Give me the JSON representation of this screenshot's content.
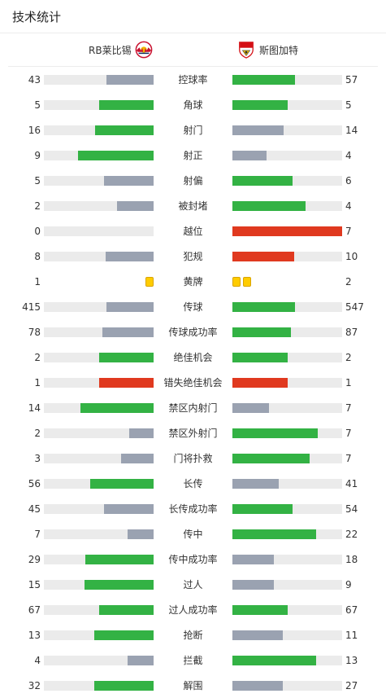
{
  "header": {
    "title": "技术统计"
  },
  "teams": {
    "home": {
      "name": "RB莱比锡",
      "logo_icon": "rb-leipzig-crest-icon"
    },
    "away": {
      "name": "斯图加特",
      "logo_icon": "vfb-stuttgart-crest-icon"
    }
  },
  "colors": {
    "winner": "#33b244",
    "loser": "#9aa2b1",
    "red_stat": "#e0391f",
    "track": "#ebebeb",
    "yellow_card": "#ffcc00"
  },
  "stats": [
    {
      "label": "控球率",
      "home": "43",
      "away": "57",
      "home_fill": 0.43,
      "away_fill": 0.57,
      "home_color": "loser",
      "away_color": "winner"
    },
    {
      "label": "角球",
      "home": "5",
      "away": "5",
      "home_fill": 0.5,
      "away_fill": 0.5,
      "home_color": "winner",
      "away_color": "winner"
    },
    {
      "label": "射门",
      "home": "16",
      "away": "14",
      "home_fill": 0.53,
      "away_fill": 0.47,
      "home_color": "winner",
      "away_color": "loser"
    },
    {
      "label": "射正",
      "home": "9",
      "away": "4",
      "home_fill": 0.69,
      "away_fill": 0.31,
      "home_color": "winner",
      "away_color": "loser"
    },
    {
      "label": "射偏",
      "home": "5",
      "away": "6",
      "home_fill": 0.45,
      "away_fill": 0.55,
      "home_color": "loser",
      "away_color": "winner"
    },
    {
      "label": "被封堵",
      "home": "2",
      "away": "4",
      "home_fill": 0.33,
      "away_fill": 0.67,
      "home_color": "loser",
      "away_color": "winner"
    },
    {
      "label": "越位",
      "home": "0",
      "away": "7",
      "home_fill": 0,
      "away_fill": 1,
      "home_color": "loser",
      "away_color": "red_stat"
    },
    {
      "label": "犯规",
      "home": "8",
      "away": "10",
      "home_fill": 0.44,
      "away_fill": 0.56,
      "home_color": "loser",
      "away_color": "red_stat"
    },
    {
      "label": "黄牌",
      "home": "1",
      "away": "2",
      "type": "cards",
      "home_cards": 1,
      "away_cards": 2
    },
    {
      "label": "传球",
      "home": "415",
      "away": "547",
      "home_fill": 0.43,
      "away_fill": 0.57,
      "home_color": "loser",
      "away_color": "winner"
    },
    {
      "label": "传球成功率",
      "home": "78",
      "away": "87",
      "home_fill": 0.47,
      "away_fill": 0.53,
      "home_color": "loser",
      "away_color": "winner"
    },
    {
      "label": "绝佳机会",
      "home": "2",
      "away": "2",
      "home_fill": 0.5,
      "away_fill": 0.5,
      "home_color": "winner",
      "away_color": "winner"
    },
    {
      "label": "错失绝佳机会",
      "home": "1",
      "away": "1",
      "home_fill": 0.5,
      "away_fill": 0.5,
      "home_color": "red_stat",
      "away_color": "red_stat"
    },
    {
      "label": "禁区内射门",
      "home": "14",
      "away": "7",
      "home_fill": 0.67,
      "away_fill": 0.33,
      "home_color": "winner",
      "away_color": "loser"
    },
    {
      "label": "禁区外射门",
      "home": "2",
      "away": "7",
      "home_fill": 0.22,
      "away_fill": 0.78,
      "home_color": "loser",
      "away_color": "winner"
    },
    {
      "label": "门将扑救",
      "home": "3",
      "away": "7",
      "home_fill": 0.3,
      "away_fill": 0.7,
      "home_color": "loser",
      "away_color": "winner"
    },
    {
      "label": "长传",
      "home": "56",
      "away": "41",
      "home_fill": 0.58,
      "away_fill": 0.42,
      "home_color": "winner",
      "away_color": "loser"
    },
    {
      "label": "长传成功率",
      "home": "45",
      "away": "54",
      "home_fill": 0.45,
      "away_fill": 0.55,
      "home_color": "loser",
      "away_color": "winner"
    },
    {
      "label": "传中",
      "home": "7",
      "away": "22",
      "home_fill": 0.24,
      "away_fill": 0.76,
      "home_color": "loser",
      "away_color": "winner"
    },
    {
      "label": "传中成功率",
      "home": "29",
      "away": "18",
      "home_fill": 0.62,
      "away_fill": 0.38,
      "home_color": "winner",
      "away_color": "loser"
    },
    {
      "label": "过人",
      "home": "15",
      "away": "9",
      "home_fill": 0.63,
      "away_fill": 0.38,
      "home_color": "winner",
      "away_color": "loser"
    },
    {
      "label": "过人成功率",
      "home": "67",
      "away": "67",
      "home_fill": 0.5,
      "away_fill": 0.5,
      "home_color": "winner",
      "away_color": "winner"
    },
    {
      "label": "抢断",
      "home": "13",
      "away": "11",
      "home_fill": 0.54,
      "away_fill": 0.46,
      "home_color": "winner",
      "away_color": "loser"
    },
    {
      "label": "拦截",
      "home": "4",
      "away": "13",
      "home_fill": 0.24,
      "away_fill": 0.76,
      "home_color": "loser",
      "away_color": "winner"
    },
    {
      "label": "解围",
      "home": "32",
      "away": "27",
      "home_fill": 0.54,
      "away_fill": 0.46,
      "home_color": "winner",
      "away_color": "loser"
    }
  ]
}
